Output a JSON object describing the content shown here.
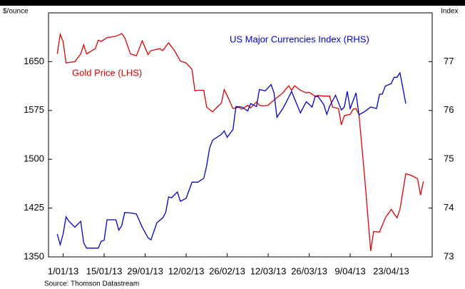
{
  "chart_data": {
    "type": "line",
    "y_label": "$/ounce",
    "y2_label": "Index",
    "source": "Source: Thomson Datastream",
    "xlim": [
      "2012-12-27",
      "2013-05-07"
    ],
    "xticks": [
      {
        "value": "2013-01-01",
        "label": "1/01/13"
      },
      {
        "value": "2013-01-15",
        "label": "15/01/13"
      },
      {
        "value": "2013-01-29",
        "label": "29/01/13"
      },
      {
        "value": "2013-02-12",
        "label": "12/02/13"
      },
      {
        "value": "2013-02-26",
        "label": "26/02/13"
      },
      {
        "value": "2013-03-12",
        "label": "12/03/13"
      },
      {
        "value": "2013-03-26",
        "label": "26/03/13"
      },
      {
        "value": "2013-04-09",
        "label": "9/04/13"
      },
      {
        "value": "2013-04-23",
        "label": "23/04/13"
      }
    ],
    "ylim": [
      1350,
      1725
    ],
    "yticks": [
      1350,
      1425,
      1500,
      1575,
      1650
    ],
    "y2lim": [
      73,
      78
    ],
    "y2ticks": [
      73,
      74,
      75,
      76,
      77
    ],
    "series": [
      {
        "name": "Gold Price (LHS)",
        "color": "#e00000",
        "axis": "y",
        "x": [
          "2012-12-30",
          "2012-12-31",
          "2013-01-01",
          "2013-01-02",
          "2013-01-05",
          "2013-01-07",
          "2013-01-08",
          "2013-01-09",
          "2013-01-12",
          "2013-01-13",
          "2013-01-14",
          "2013-01-16",
          "2013-01-19",
          "2013-01-21",
          "2013-01-22",
          "2013-01-24",
          "2013-01-26",
          "2013-01-28",
          "2013-01-30",
          "2013-01-31",
          "2013-02-03",
          "2013-02-04",
          "2013-02-06",
          "2013-02-08",
          "2013-02-10",
          "2013-02-12",
          "2013-02-14",
          "2013-02-15",
          "2013-02-16",
          "2013-02-18",
          "2013-02-19",
          "2013-02-21",
          "2013-02-23",
          "2013-02-24",
          "2013-02-25",
          "2013-02-26",
          "2013-02-28",
          "2013-03-02",
          "2013-03-03",
          "2013-03-05",
          "2013-03-06",
          "2013-03-08",
          "2013-03-09",
          "2013-03-10",
          "2013-03-12",
          "2013-03-14",
          "2013-03-17",
          "2013-03-19",
          "2013-03-20",
          "2013-03-21",
          "2013-03-23",
          "2013-03-25",
          "2013-03-26",
          "2013-03-28",
          "2013-03-29",
          "2013-03-31",
          "2013-04-02",
          "2013-04-03",
          "2013-04-05",
          "2013-04-06",
          "2013-04-07",
          "2013-04-09",
          "2013-04-10",
          "2013-04-11",
          "2013-04-12",
          "2013-04-14",
          "2013-04-16",
          "2013-04-17",
          "2013-04-19",
          "2013-04-21",
          "2013-04-23",
          "2013-04-25",
          "2013-04-26",
          "2013-04-28",
          "2013-04-30",
          "2013-05-02",
          "2013-05-03",
          "2013-05-04"
        ],
        "values": [
          1662,
          1692,
          1681,
          1648,
          1650,
          1662,
          1676,
          1662,
          1670,
          1683,
          1681,
          1687,
          1689,
          1693,
          1687,
          1662,
          1659,
          1682,
          1661,
          1667,
          1670,
          1667,
          1679,
          1667,
          1651,
          1648,
          1638,
          1605,
          1606,
          1606,
          1580,
          1573,
          1582,
          1586,
          1607,
          1598,
          1578,
          1580,
          1577,
          1583,
          1579,
          1588,
          1583,
          1582,
          1583,
          1591,
          1602,
          1613,
          1606,
          1613,
          1606,
          1602,
          1603,
          1597,
          1598,
          1597,
          1597,
          1580,
          1578,
          1553,
          1567,
          1569,
          1577,
          1578,
          1569,
          1470,
          1359,
          1389,
          1388,
          1410,
          1423,
          1410,
          1423,
          1478,
          1475,
          1470,
          1445,
          1466
        ]
      },
      {
        "name": "US Major Currencies Index (RHS)",
        "color": "#0000d0",
        "axis": "y2",
        "x": [
          "2012-12-30",
          "2012-12-31",
          "2013-01-01",
          "2013-01-02",
          "2013-01-03",
          "2013-01-05",
          "2013-01-07",
          "2013-01-08",
          "2013-01-09",
          "2013-01-12",
          "2013-01-13",
          "2013-01-14",
          "2013-01-15",
          "2013-01-16",
          "2013-01-19",
          "2013-01-20",
          "2013-01-21",
          "2013-01-22",
          "2013-01-24",
          "2013-01-26",
          "2013-01-28",
          "2013-01-30",
          "2013-01-31",
          "2013-02-02",
          "2013-02-04",
          "2013-02-05",
          "2013-02-06",
          "2013-02-07",
          "2013-02-09",
          "2013-02-10",
          "2013-02-12",
          "2013-02-14",
          "2013-02-16",
          "2013-02-18",
          "2013-02-19",
          "2013-02-20",
          "2013-02-21",
          "2013-02-24",
          "2013-02-25",
          "2013-02-26",
          "2013-02-28",
          "2013-03-01",
          "2013-03-03",
          "2013-03-05",
          "2013-03-06",
          "2013-03-08",
          "2013-03-09",
          "2013-03-11",
          "2013-03-13",
          "2013-03-14",
          "2013-03-15",
          "2013-03-17",
          "2013-03-18",
          "2013-03-20",
          "2013-03-21",
          "2013-03-23",
          "2013-03-25",
          "2013-03-27",
          "2013-03-28",
          "2013-03-29",
          "2013-03-31",
          "2013-04-01",
          "2013-04-02",
          "2013-04-04",
          "2013-04-06",
          "2013-04-07",
          "2013-04-08",
          "2013-04-09",
          "2013-04-11",
          "2013-04-12",
          "2013-04-14",
          "2013-04-16",
          "2013-04-18",
          "2013-04-19",
          "2013-04-20",
          "2013-04-21",
          "2013-04-23",
          "2013-04-24",
          "2013-04-25",
          "2013-04-26",
          "2013-04-28"
        ],
        "values": [
          73.47,
          73.25,
          73.47,
          73.82,
          73.73,
          73.61,
          73.73,
          73.29,
          73.18,
          73.18,
          73.18,
          73.32,
          73.34,
          73.76,
          73.76,
          73.55,
          73.64,
          73.91,
          73.9,
          73.88,
          73.61,
          73.39,
          73.35,
          73.7,
          73.8,
          73.91,
          74.23,
          74.21,
          74.33,
          74.14,
          74.2,
          74.53,
          74.53,
          74.61,
          74.87,
          75.23,
          75.39,
          75.51,
          75.58,
          75.45,
          75.61,
          76.08,
          76.07,
          75.99,
          76.14,
          76.08,
          76.43,
          76.4,
          76.53,
          76.36,
          75.86,
          76.04,
          76.15,
          76.39,
          76.24,
          75.95,
          76.18,
          76.07,
          76.28,
          76.29,
          76.12,
          75.92,
          76.09,
          76.31,
          76.01,
          76.07,
          76.39,
          76.04,
          76.36,
          75.91,
          75.98,
          76.07,
          76.04,
          76.33,
          76.34,
          76.5,
          76.55,
          76.68,
          76.68,
          76.77,
          76.14
        ]
      }
    ]
  }
}
